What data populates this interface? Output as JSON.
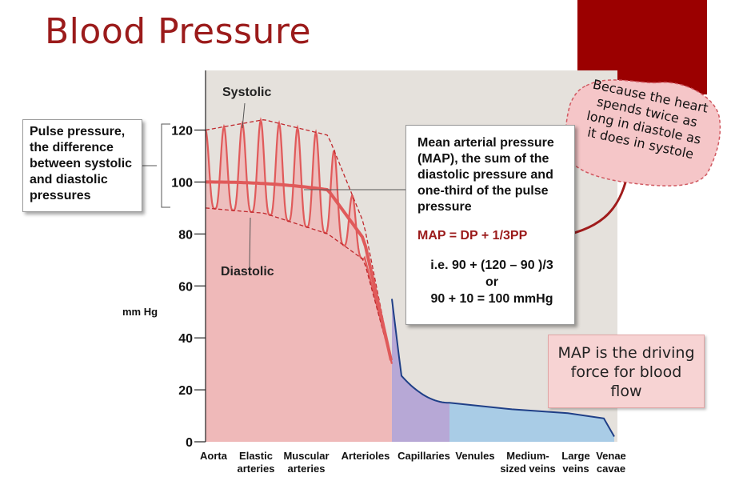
{
  "title": "Blood Pressure",
  "chart_data": {
    "type": "area",
    "ylabel": "mm Hg",
    "yticks": [
      0,
      20,
      40,
      60,
      80,
      100,
      120
    ],
    "ylim": [
      0,
      135
    ],
    "categories": [
      "Aorta",
      "Elastic arteries",
      "Muscular arteries",
      "Arterioles",
      "Capillaries",
      "Venules",
      "Medium-sized veins",
      "Large veins",
      "Venae cavae"
    ],
    "category_lines": [
      [
        "Aorta"
      ],
      [
        "Elastic",
        "arteries"
      ],
      [
        "Muscular",
        "arteries"
      ],
      [
        "Arterioles"
      ],
      [
        "Capillaries"
      ],
      [
        "Venules"
      ],
      [
        "Medium-",
        "sized veins"
      ],
      [
        "Large",
        "veins"
      ],
      [
        "Venae",
        "cavae"
      ]
    ],
    "labels": {
      "systolic": "Systolic",
      "diastolic": "Diastolic"
    },
    "series": [
      {
        "name": "Systolic",
        "values": [
          120,
          124,
          118,
          84,
          30,
          15,
          12,
          10,
          3
        ]
      },
      {
        "name": "Diastolic",
        "values": [
          90,
          88,
          80,
          70,
          30,
          15,
          12,
          10,
          3
        ]
      },
      {
        "name": "Mean arterial pressure",
        "values": [
          100,
          100,
          97,
          78,
          30,
          15,
          12,
          10,
          3
        ]
      }
    ],
    "colors": {
      "arterial": "#efb8b8",
      "capillaries": "#b7a8d6",
      "venous": "#a9cce6",
      "line": "#e05a5a",
      "dashed": "#c0282d",
      "venous_line": "#1f3f87",
      "background": "#e5e1dc"
    }
  },
  "pulse_pressure_note": [
    "Pulse pressure,",
    "the difference",
    "between systolic",
    "and diastolic",
    "pressures"
  ],
  "map_box": {
    "lines": [
      "Mean arterial pressure",
      "(MAP), the sum of the",
      "diastolic pressure and",
      "one-third of the pulse",
      "pressure"
    ],
    "formula": "MAP = DP + 1/3PP",
    "example": [
      "i.e. 90 + (120 – 90 )/3",
      "or",
      "90 + 10 = 100 mmHg"
    ],
    "accent_color": "#9b1b1b"
  },
  "annotation": [
    "Because the heart",
    "spends twice as",
    "long in diastole as",
    "it does in systole"
  ],
  "driving_note": [
    "MAP is the driving",
    "force for blood",
    "flow"
  ]
}
